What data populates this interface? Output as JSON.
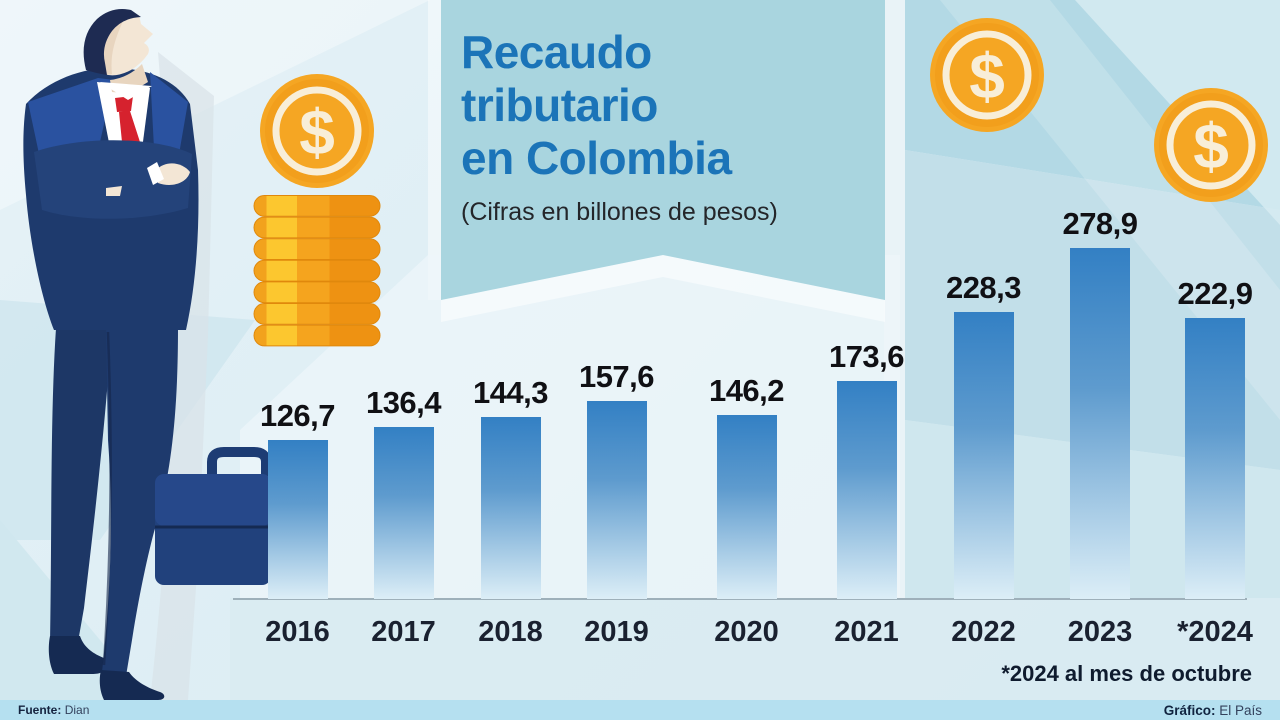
{
  "header": {
    "title_lines": [
      "Recaudo",
      "tributario",
      "en Colombia"
    ],
    "subtitle": "(Cifras en billones de pesos)"
  },
  "chart_data": {
    "type": "bar",
    "title": "Recaudo tributario en Colombia",
    "subtitle": "(Cifras en billones de pesos)",
    "unit": "billones de pesos",
    "categories": [
      "2016",
      "2017",
      "2018",
      "2019",
      "2020",
      "2021",
      "2022",
      "2023",
      "*2024"
    ],
    "values": [
      126.7,
      136.4,
      144.3,
      157.6,
      146.2,
      173.6,
      228.3,
      278.9,
      222.9
    ],
    "value_labels": [
      "126,7",
      "136,4",
      "144,3",
      "157,6",
      "146,2",
      "173,6",
      "228,3",
      "278,9",
      "222,9"
    ],
    "ylim": [
      0,
      290
    ],
    "grid": false,
    "legend_position": "none",
    "footnote": "*2024 al mes de octubre"
  },
  "coins": {
    "symbol": "$"
  },
  "footer": {
    "source_label": "Fuente:",
    "source_value": "Dian",
    "credit_label": "Gráfico:",
    "credit_value": "El País"
  },
  "colors": {
    "title_blue": "#1b74b8",
    "banner_teal": "#a9d5df",
    "bar_top": "#3380c4",
    "bar_bottom": "#dceef7",
    "coin_orange": "#f5a623",
    "coin_cream": "#f8eed8",
    "suit_navy": "#1e3a6d",
    "lapel_blue": "#2a52a0",
    "tie_red": "#d6222e",
    "footer_strip": "#b5e0f0"
  }
}
